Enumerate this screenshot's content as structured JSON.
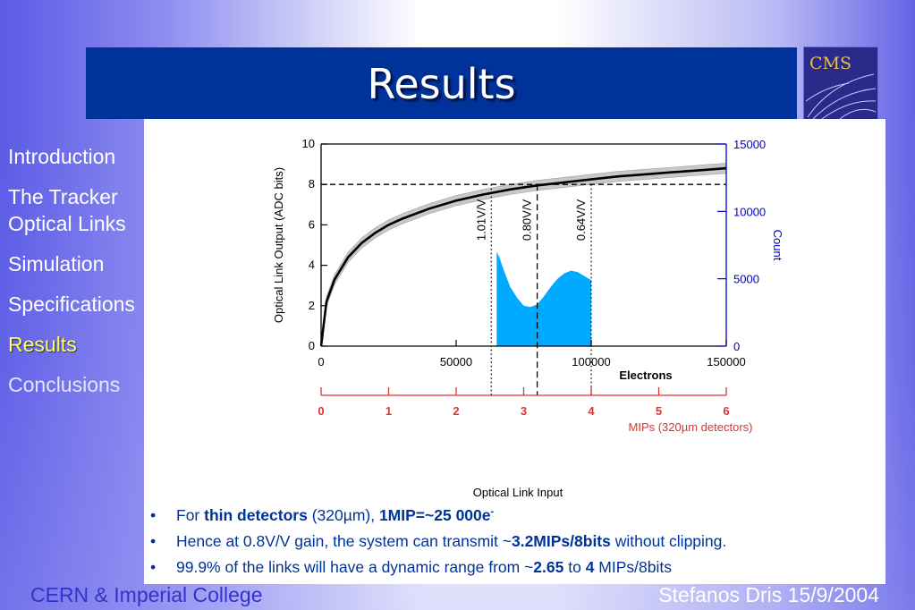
{
  "slide": {
    "title": "Results",
    "logo_text": "CMS",
    "footer_left": "CERN & Imperial College",
    "footer_right": "Stefanos Dris 15/9/2004"
  },
  "nav": {
    "items": [
      {
        "label": "Introduction",
        "state": "normal"
      },
      {
        "label": "The Tracker Optical Links",
        "state": "normal"
      },
      {
        "label": "Simulation",
        "state": "normal"
      },
      {
        "label": "Specifications",
        "state": "normal"
      },
      {
        "label": "Results",
        "state": "active"
      },
      {
        "label": "Conclusions",
        "state": "dim"
      }
    ]
  },
  "bullets": [
    {
      "parts": [
        {
          "t": "For ",
          "b": false
        },
        {
          "t": "thin detectors",
          "b": true
        },
        {
          "t": " (320µm), ",
          "b": false
        },
        {
          "t": "1MIP=~25 000e",
          "b": true
        },
        {
          "t": "-",
          "b": true,
          "sup": true
        }
      ]
    },
    {
      "parts": [
        {
          "t": "Hence at 0.8V/V gain, the system can transmit ~",
          "b": false
        },
        {
          "t": "3.2MIPs/8bits",
          "b": true
        },
        {
          "t": " without clipping.",
          "b": false
        }
      ]
    },
    {
      "parts": [
        {
          "t": "99.9% of the links will have a dynamic range from ~",
          "b": false
        },
        {
          "t": "2.65",
          "b": true
        },
        {
          "t": " to ",
          "b": false
        },
        {
          "t": "4",
          "b": true
        },
        {
          "t": " MIPs/8bits",
          "b": false
        }
      ]
    }
  ],
  "colors": {
    "title_bar": "#003399",
    "histogram": "#00aaff",
    "right_axis": "#0000cc",
    "mip_axis": "#dd3333",
    "nav_active": "#ffff66"
  },
  "chart_data": {
    "type": "line",
    "x_axis": {
      "label": "Electrons",
      "range": [
        0,
        150000
      ],
      "ticks": [
        "0",
        "50000",
        "100000",
        "150000"
      ]
    },
    "y_axis_left": {
      "label": "Optical Link Output (ADC bits)",
      "range": [
        0,
        10
      ],
      "ticks": [
        "0",
        "2",
        "4",
        "6",
        "8",
        "10"
      ]
    },
    "y_axis_right": {
      "label": "Count",
      "range": [
        0,
        15000
      ],
      "ticks": [
        "0",
        "5000",
        "10000",
        "15000"
      ]
    },
    "mip_axis": {
      "label": "MIPs (320µm detectors)",
      "range": [
        0,
        6
      ],
      "ticks": [
        "0",
        "1",
        "2",
        "3",
        "4",
        "5",
        "6"
      ]
    },
    "bottom_caption": "Optical Link Input",
    "response_curve": {
      "x": [
        0,
        2000,
        5000,
        10000,
        15000,
        20000,
        25000,
        30000,
        40000,
        50000,
        60000,
        70000,
        80000,
        90000,
        100000,
        110000,
        120000,
        130000,
        140000,
        150000
      ],
      "y": [
        0,
        2.2,
        3.3,
        4.4,
        5.1,
        5.6,
        6.0,
        6.3,
        6.8,
        7.2,
        7.5,
        7.75,
        7.95,
        8.1,
        8.25,
        8.4,
        8.5,
        8.6,
        8.7,
        8.8
      ],
      "band_halfwidth": 0.25
    },
    "histogram": {
      "x": [
        65000,
        66000,
        67500,
        70000,
        72500,
        75000,
        77500,
        80000,
        82500,
        85000,
        87500,
        90000,
        92500,
        95000,
        97500,
        100000
      ],
      "counts": [
        7000,
        6600,
        5700,
        4400,
        3600,
        3000,
        2900,
        3100,
        3700,
        4400,
        5000,
        5400,
        5600,
        5500,
        5200,
        4900
      ]
    },
    "reference_lines": [
      {
        "type": "horizontal",
        "y": 8,
        "style": "dashed"
      },
      {
        "type": "vertical",
        "x": 63000,
        "label": "1.01V/V",
        "style": "dotted"
      },
      {
        "type": "vertical",
        "x": 80000,
        "label": "0.80V/V",
        "style": "dashed"
      },
      {
        "type": "vertical",
        "x": 100000,
        "label": "0.64V/V",
        "style": "dotted"
      }
    ]
  }
}
